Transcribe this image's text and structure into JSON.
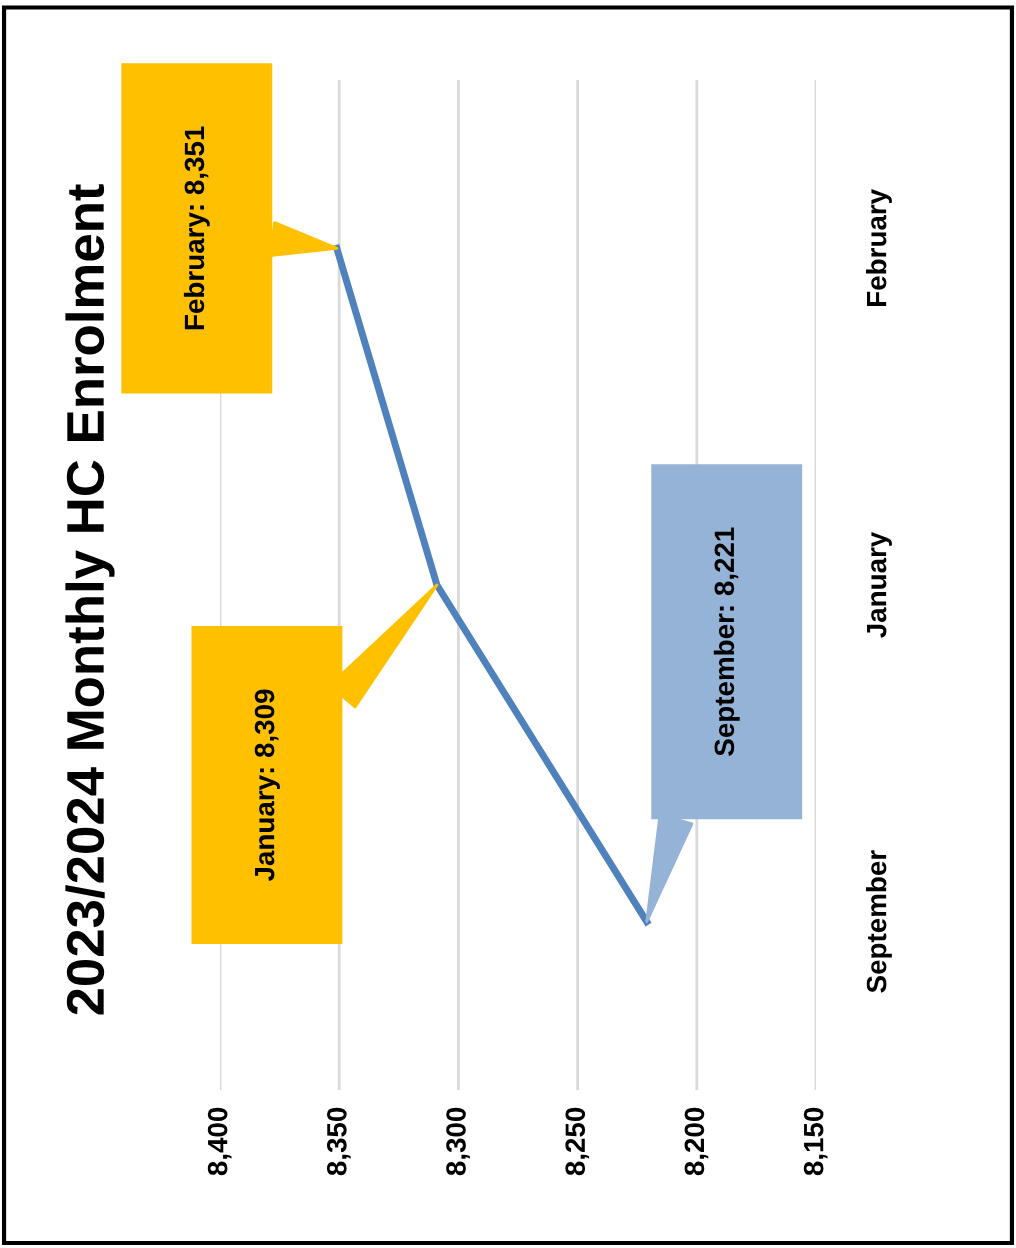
{
  "chart_data": {
    "type": "line",
    "title": "2023/2024 Monthly HC Enrolment",
    "orientation": "horizontal",
    "categories": [
      "February",
      "January",
      "September"
    ],
    "series": [
      {
        "color": "#4f81bd",
        "values": [
          8351,
          8309,
          8221
        ]
      }
    ],
    "annotations": [
      "February: 8,351",
      "January: 8,309",
      "September: 8,221"
    ],
    "xlim": [
      8400,
      8150
    ],
    "xticks": [
      {
        "value": 8400,
        "label": "8,400"
      },
      {
        "value": 8350,
        "label": "8,350"
      },
      {
        "value": 8300,
        "label": "8,300"
      },
      {
        "value": 8250,
        "label": "8,250"
      },
      {
        "value": 8200,
        "label": "8,200"
      },
      {
        "value": 8150,
        "label": "8,150"
      }
    ],
    "grid": "x",
    "marker": "none",
    "line_style": "solid"
  }
}
